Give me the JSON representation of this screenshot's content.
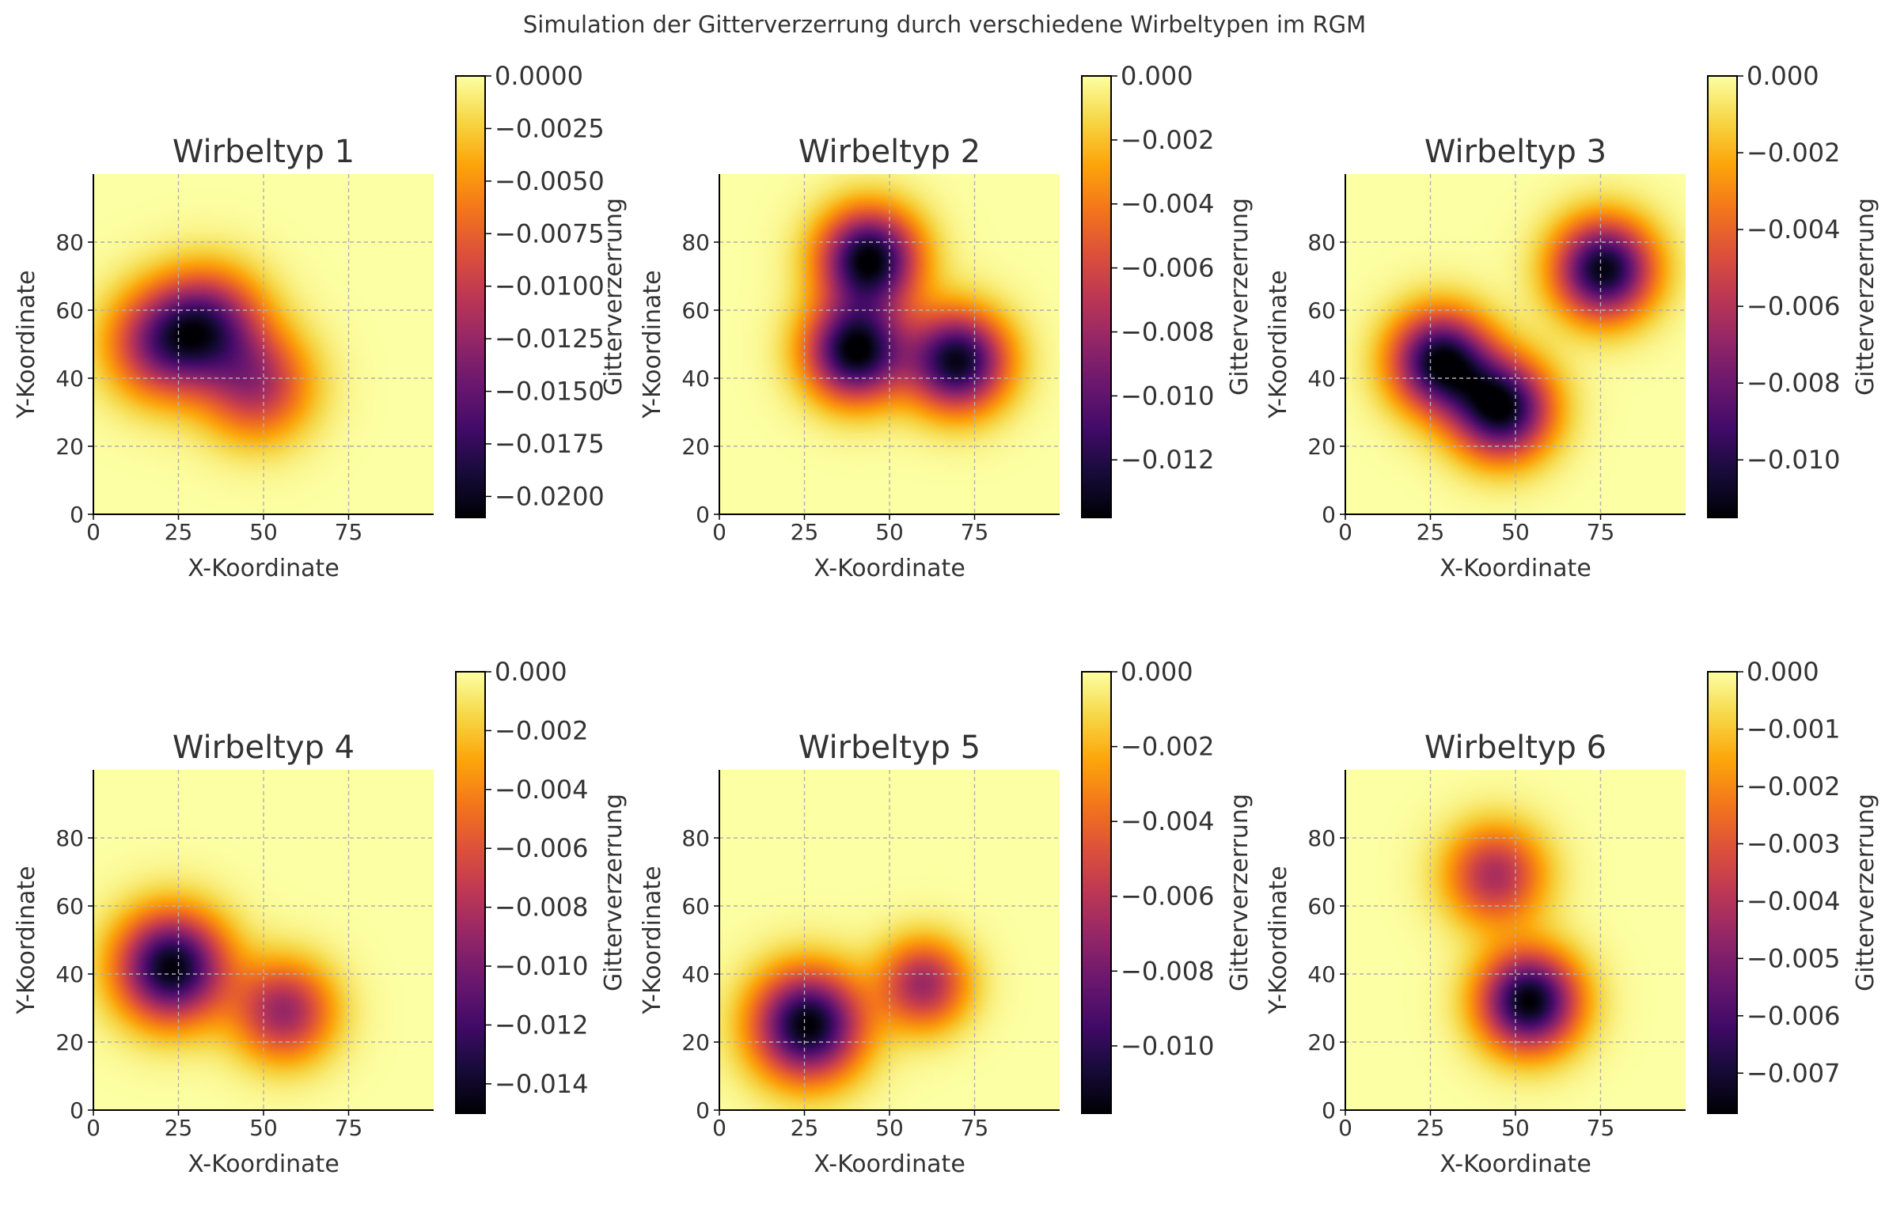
{
  "figure": {
    "suptitle": "Simulation der Gitterverzerrung durch verschiedene Wirbeltypen im RGM"
  },
  "colormap": "inferno",
  "colors": {
    "grid": "#b0b0b0",
    "text": "#333333",
    "axis": "#000000"
  },
  "chart_data": [
    {
      "type": "heatmap",
      "title": "Wirbeltyp 1",
      "xlabel": "X-Koordinate",
      "ylabel": "Y-Koordinate",
      "xlim": [
        0,
        100
      ],
      "ylim": [
        0,
        100
      ],
      "xticks": [
        0,
        25,
        50,
        75
      ],
      "yticks": [
        0,
        20,
        40,
        60,
        80
      ],
      "xtick_labels": [
        "0",
        "25",
        "50",
        "75"
      ],
      "ytick_labels": [
        "0",
        "20",
        "40",
        "60",
        "80"
      ],
      "grid": true,
      "colorbar": {
        "label": "Gitterverzerrung",
        "range": [
          -0.021,
          0
        ],
        "ticks": [
          0,
          -0.0025,
          -0.005,
          -0.0075,
          -0.01,
          -0.0125,
          -0.015,
          -0.0175,
          -0.02
        ],
        "tick_labels": [
          "0.0000",
          "−0.0025",
          "−0.0050",
          "−0.0075",
          "−0.0100",
          "−0.0125",
          "−0.0150",
          "−0.0175",
          "−0.0200"
        ]
      },
      "vortices": [
        {
          "x": 20,
          "y": 50,
          "amplitude": 0.0125,
          "width": 11
        },
        {
          "x": 34,
          "y": 56,
          "amplitude": 0.0135,
          "width": 11
        },
        {
          "x": 48,
          "y": 38,
          "amplitude": 0.011,
          "width": 11
        }
      ]
    },
    {
      "type": "heatmap",
      "title": "Wirbeltyp 2",
      "xlabel": "X-Koordinate",
      "ylabel": "Y-Koordinate",
      "xlim": [
        0,
        100
      ],
      "ylim": [
        0,
        100
      ],
      "xticks": [
        0,
        25,
        50,
        75
      ],
      "yticks": [
        0,
        20,
        40,
        60,
        80
      ],
      "xtick_labels": [
        "0",
        "25",
        "50",
        "75"
      ],
      "ytick_labels": [
        "0",
        "20",
        "40",
        "60",
        "80"
      ],
      "grid": true,
      "colorbar": {
        "label": "Gitterverzerrung",
        "range": [
          -0.0138,
          0
        ],
        "ticks": [
          0,
          -0.002,
          -0.004,
          -0.006,
          -0.008,
          -0.01,
          -0.012
        ],
        "tick_labels": [
          "0.000",
          "−0.002",
          "−0.004",
          "−0.006",
          "−0.008",
          "−0.010",
          "−0.012"
        ]
      },
      "vortices": [
        {
          "x": 44,
          "y": 75,
          "amplitude": 0.0138,
          "width": 10
        },
        {
          "x": 40,
          "y": 48,
          "amplitude": 0.0138,
          "width": 10
        },
        {
          "x": 70,
          "y": 45,
          "amplitude": 0.0132,
          "width": 10
        }
      ]
    },
    {
      "type": "heatmap",
      "title": "Wirbeltyp 3",
      "xlabel": "X-Koordinate",
      "ylabel": "Y-Koordinate",
      "xlim": [
        0,
        100
      ],
      "ylim": [
        0,
        100
      ],
      "xticks": [
        0,
        25,
        50,
        75
      ],
      "yticks": [
        0,
        20,
        40,
        60,
        80
      ],
      "xtick_labels": [
        "0",
        "25",
        "50",
        "75"
      ],
      "ytick_labels": [
        "0",
        "20",
        "40",
        "60",
        "80"
      ],
      "grid": true,
      "colorbar": {
        "label": "Gitterverzerrung",
        "range": [
          -0.0115,
          0
        ],
        "ticks": [
          0,
          -0.002,
          -0.004,
          -0.006,
          -0.008,
          -0.01
        ],
        "tick_labels": [
          "0.000",
          "−0.002",
          "−0.004",
          "−0.006",
          "−0.008",
          "−0.010"
        ]
      },
      "vortices": [
        {
          "x": 28,
          "y": 45,
          "amplitude": 0.0112,
          "width": 10
        },
        {
          "x": 46,
          "y": 31,
          "amplitude": 0.0112,
          "width": 10
        },
        {
          "x": 76,
          "y": 72,
          "amplitude": 0.0112,
          "width": 10
        }
      ]
    },
    {
      "type": "heatmap",
      "title": "Wirbeltyp 4",
      "xlabel": "X-Koordinate",
      "ylabel": "Y-Koordinate",
      "xlim": [
        0,
        100
      ],
      "ylim": [
        0,
        100
      ],
      "xticks": [
        0,
        25,
        50,
        75
      ],
      "yticks": [
        0,
        20,
        40,
        60,
        80
      ],
      "xtick_labels": [
        "0",
        "25",
        "50",
        "75"
      ],
      "ytick_labels": [
        "0",
        "20",
        "40",
        "60",
        "80"
      ],
      "grid": true,
      "colorbar": {
        "label": "Gitterverzerrung",
        "range": [
          -0.015,
          0
        ],
        "ticks": [
          0,
          -0.002,
          -0.004,
          -0.006,
          -0.008,
          -0.01,
          -0.012,
          -0.014
        ],
        "tick_labels": [
          "0.000",
          "−0.002",
          "−0.004",
          "−0.006",
          "−0.008",
          "−0.010",
          "−0.012",
          "−0.014"
        ]
      },
      "vortices": [
        {
          "x": 23,
          "y": 42,
          "amplitude": 0.0148,
          "width": 11
        },
        {
          "x": 56,
          "y": 29,
          "amplitude": 0.0088,
          "width": 10
        }
      ]
    },
    {
      "type": "heatmap",
      "title": "Wirbeltyp 5",
      "xlabel": "X-Koordinate",
      "ylabel": "Y-Koordinate",
      "xlim": [
        0,
        100
      ],
      "ylim": [
        0,
        100
      ],
      "xticks": [
        0,
        25,
        50,
        75
      ],
      "yticks": [
        0,
        20,
        40,
        60,
        80
      ],
      "xtick_labels": [
        "0",
        "25",
        "50",
        "75"
      ],
      "ytick_labels": [
        "0",
        "20",
        "40",
        "60",
        "80"
      ],
      "grid": true,
      "colorbar": {
        "label": "Gitterverzerrung",
        "range": [
          -0.0118,
          0
        ],
        "ticks": [
          0,
          -0.002,
          -0.004,
          -0.006,
          -0.008,
          -0.01
        ],
        "tick_labels": [
          "0.000",
          "−0.002",
          "−0.004",
          "−0.006",
          "−0.008",
          "−0.010"
        ]
      },
      "vortices": [
        {
          "x": 26,
          "y": 25,
          "amplitude": 0.0118,
          "width": 11
        },
        {
          "x": 60,
          "y": 37,
          "amplitude": 0.0068,
          "width": 9
        }
      ]
    },
    {
      "type": "heatmap",
      "title": "Wirbeltyp 6",
      "xlabel": "X-Koordinate",
      "ylabel": "Y-Koordinate",
      "xlim": [
        0,
        100
      ],
      "ylim": [
        0,
        100
      ],
      "xticks": [
        0,
        25,
        50,
        75
      ],
      "yticks": [
        0,
        20,
        40,
        60,
        80
      ],
      "xtick_labels": [
        "0",
        "25",
        "50",
        "75"
      ],
      "ytick_labels": [
        "0",
        "20",
        "40",
        "60",
        "80"
      ],
      "grid": true,
      "colorbar": {
        "label": "Gitterverzerrung",
        "range": [
          -0.0077,
          0
        ],
        "ticks": [
          0,
          -0.001,
          -0.002,
          -0.003,
          -0.004,
          -0.005,
          -0.006,
          -0.007
        ],
        "tick_labels": [
          "0.000",
          "−0.001",
          "−0.002",
          "−0.003",
          "−0.004",
          "−0.005",
          "−0.006",
          "−0.007"
        ]
      },
      "vortices": [
        {
          "x": 44,
          "y": 69,
          "amplitude": 0.0042,
          "width": 10
        },
        {
          "x": 54,
          "y": 32,
          "amplitude": 0.0077,
          "width": 10
        }
      ]
    }
  ]
}
